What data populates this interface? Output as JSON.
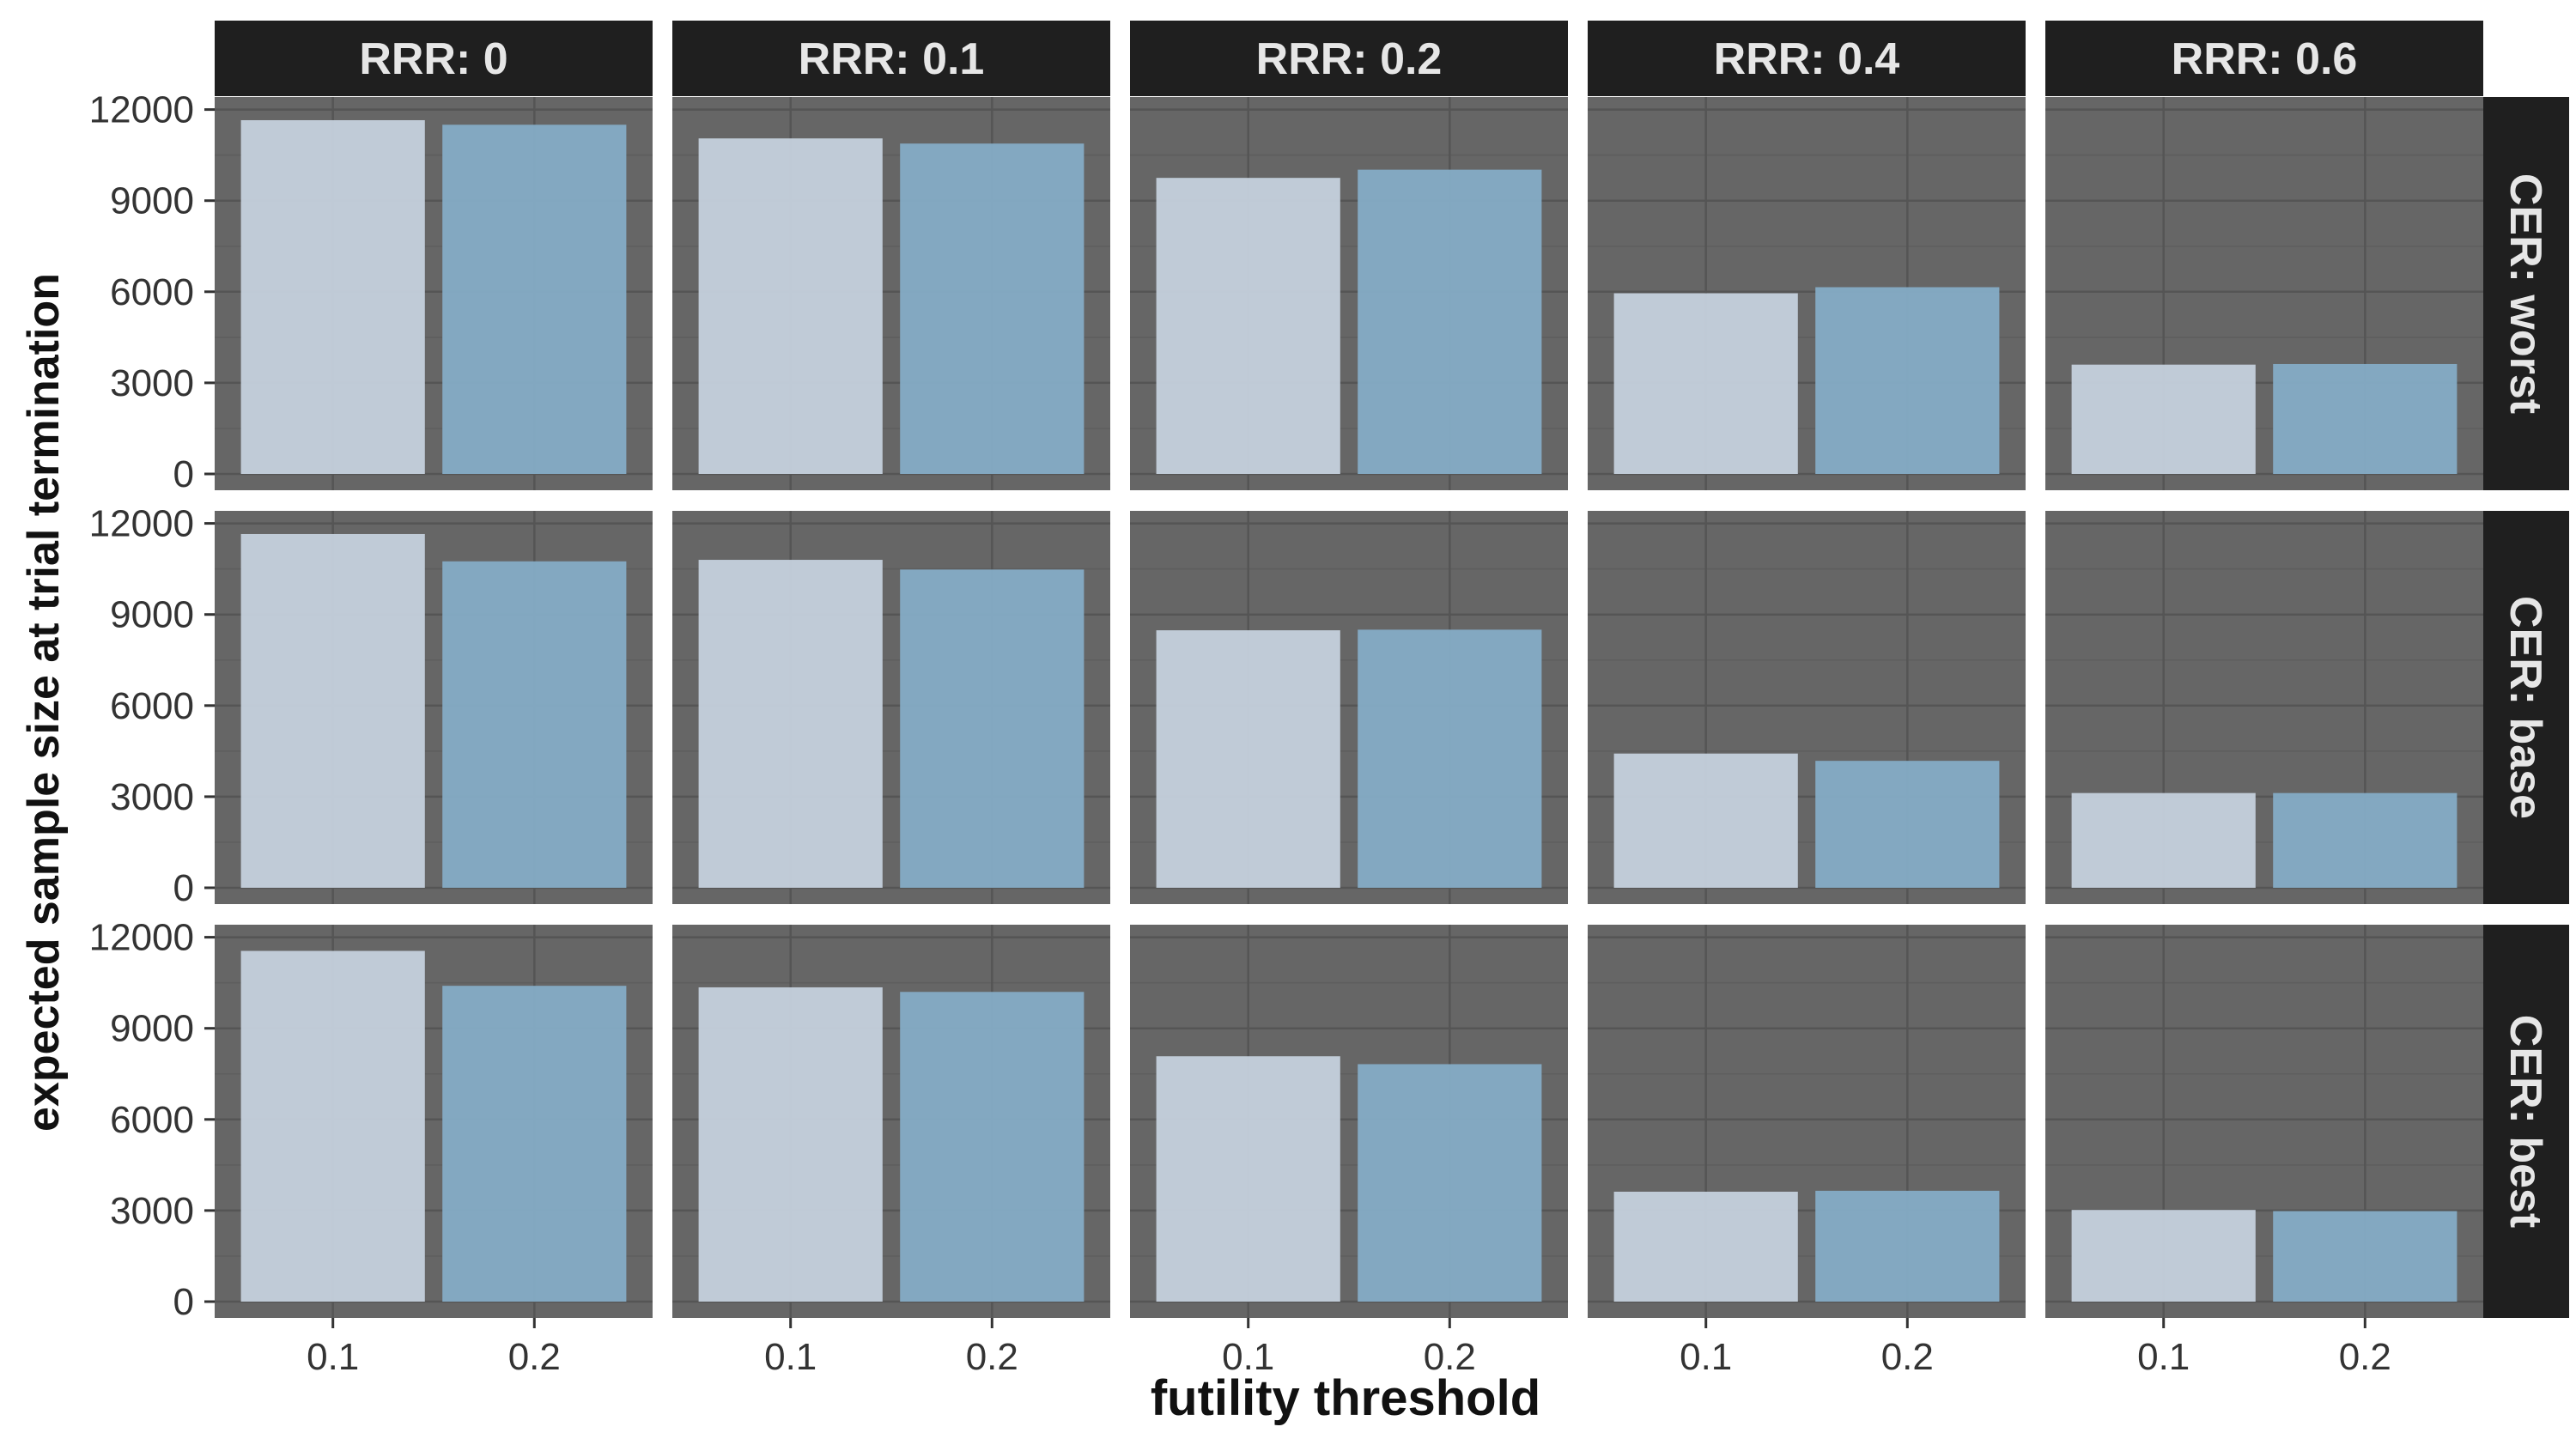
{
  "chart_data": {
    "type": "bar",
    "layout": "facet-grid",
    "xlabel": "futility threshold",
    "ylabel": "expected sample size at trial termination",
    "categories": [
      "0.1",
      "0.2"
    ],
    "bar_colors": [
      "#c5d1dd",
      "#85acc6"
    ],
    "panel_background": "#666666",
    "strip_background": "#1f1f1f",
    "grid": true,
    "ylim": [
      0,
      12000
    ],
    "yticks": [
      0,
      3000,
      6000,
      9000,
      12000
    ],
    "columns": [
      {
        "label": "RRR: 0"
      },
      {
        "label": "RRR: 0.1"
      },
      {
        "label": "RRR: 0.2"
      },
      {
        "label": "RRR: 0.4"
      },
      {
        "label": "RRR: 0.6"
      }
    ],
    "rows": [
      {
        "label": "CER: worst",
        "values": [
          [
            11650,
            11500
          ],
          [
            11050,
            10880
          ],
          [
            9750,
            10020
          ],
          [
            5950,
            6150
          ],
          [
            3600,
            3620
          ]
        ]
      },
      {
        "label": "CER: base",
        "values": [
          [
            11650,
            10750
          ],
          [
            10800,
            10480
          ],
          [
            8480,
            8500
          ],
          [
            4420,
            4180
          ],
          [
            3120,
            3120
          ]
        ]
      },
      {
        "label": "CER: best",
        "values": [
          [
            11550,
            10400
          ],
          [
            10350,
            10200
          ],
          [
            8080,
            7820
          ],
          [
            3620,
            3650
          ],
          [
            3020,
            2980
          ]
        ]
      }
    ]
  }
}
